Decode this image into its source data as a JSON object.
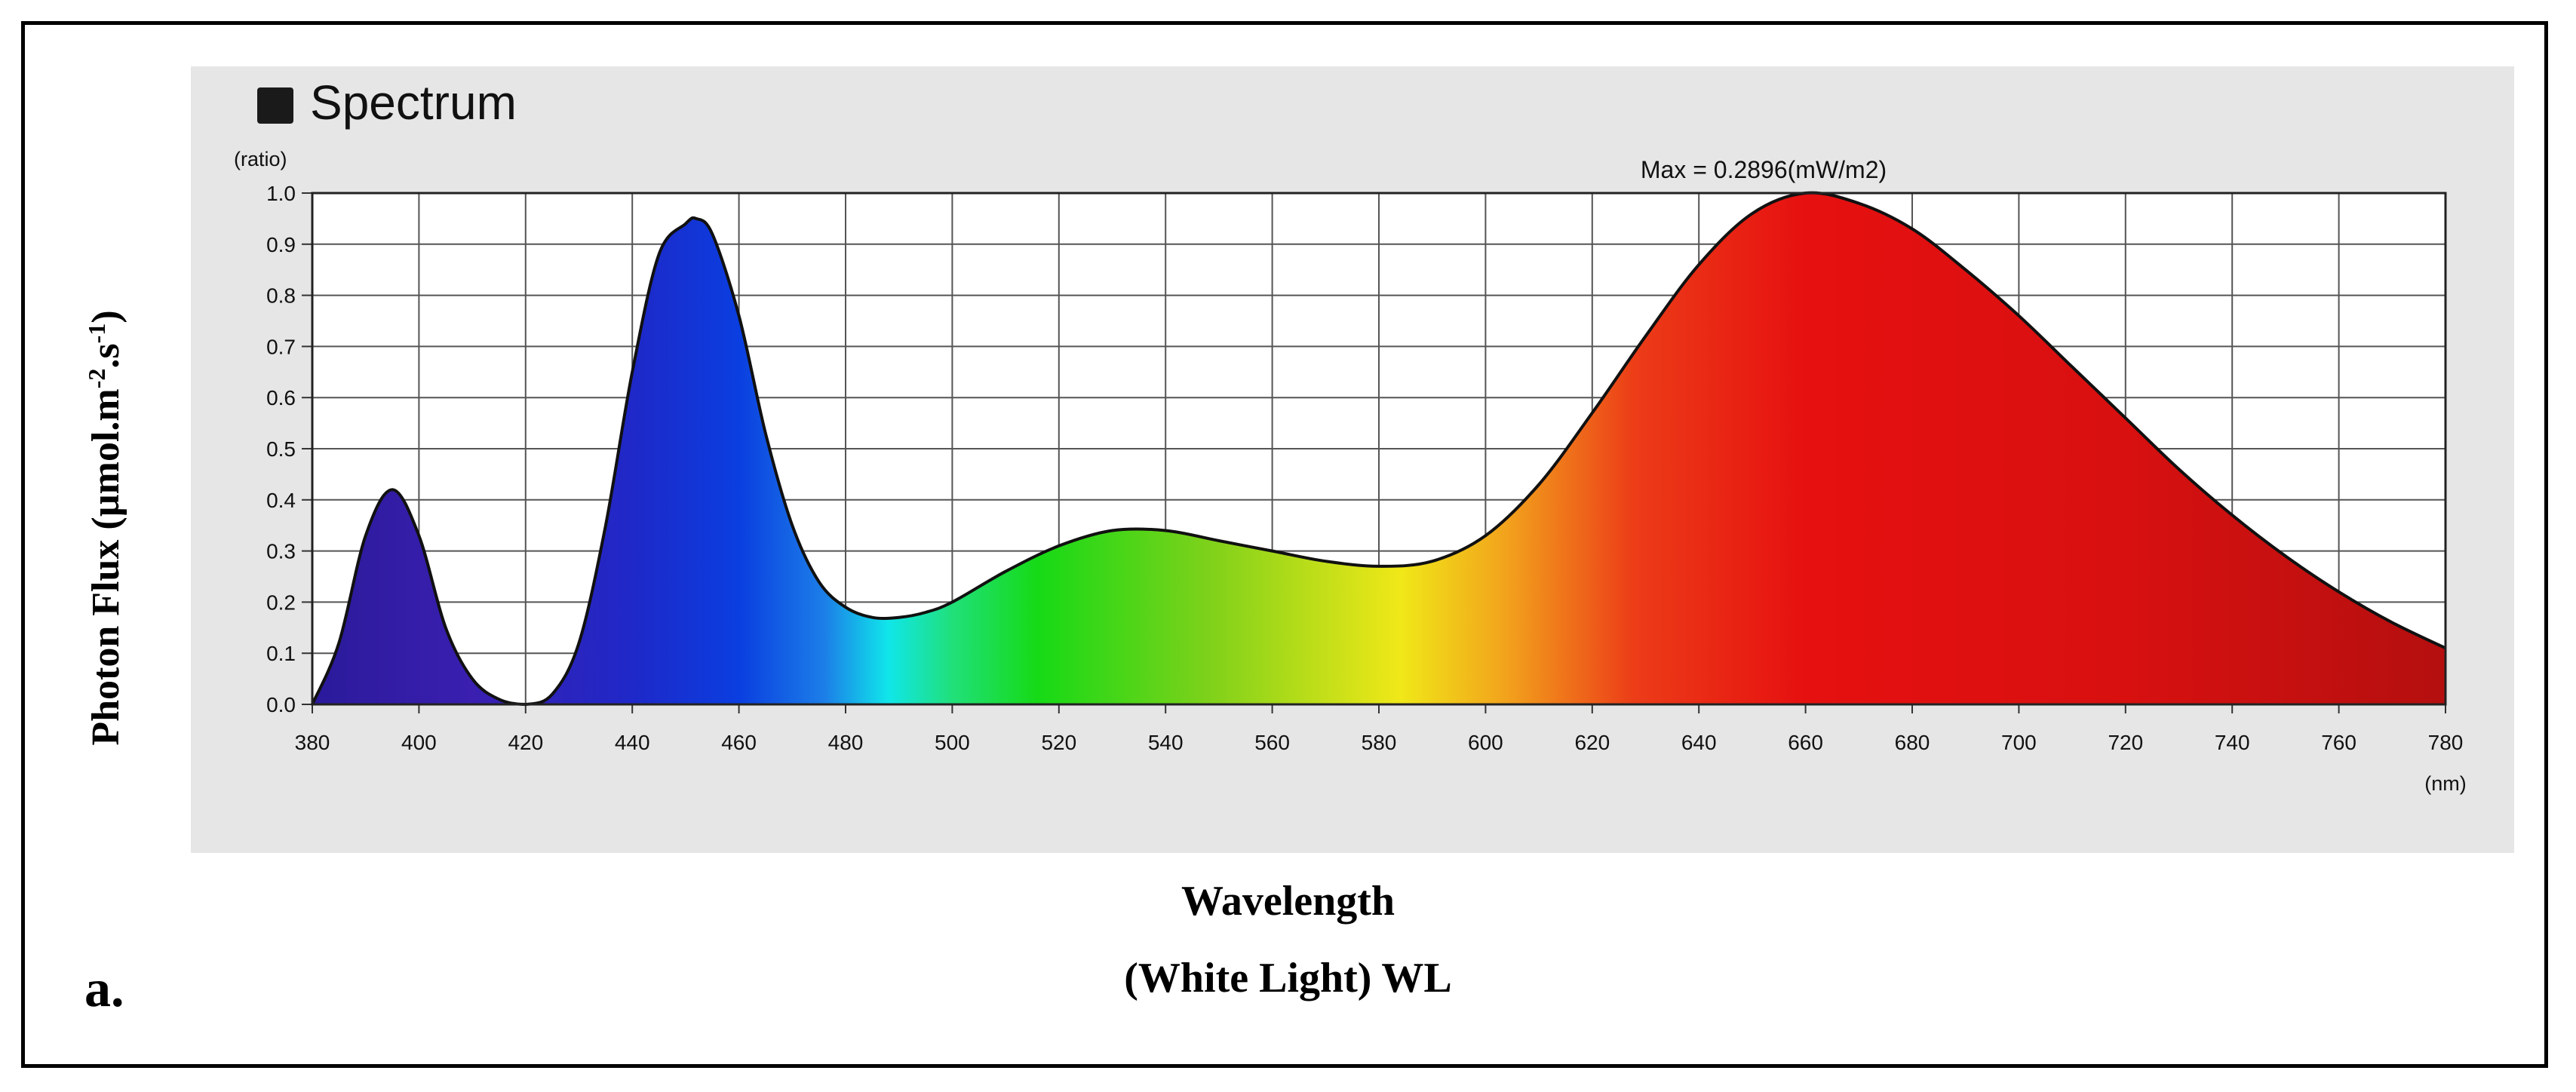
{
  "figure": {
    "panel_label": "a.",
    "y_title": {
      "main": "Photon Flux (µmol.m",
      "sup1": "-2",
      "mid": ".s",
      "sup2": "-1",
      "end": ")"
    },
    "x_title": "Wavelength",
    "subtitle": "(White Light) WL"
  },
  "chart_data": {
    "type": "area",
    "legend": {
      "label": "Spectrum",
      "swatch_color": "#1a1a1a",
      "placement": "top-left"
    },
    "annotation": "Max = 0.2896(mW/m2)",
    "y_unit": "(ratio)",
    "x_unit": "(nm)",
    "xlim": [
      380,
      780
    ],
    "ylim": [
      0,
      1.0
    ],
    "grid": true,
    "x_ticks": [
      380,
      400,
      420,
      440,
      460,
      480,
      500,
      520,
      540,
      560,
      580,
      600,
      620,
      640,
      660,
      680,
      700,
      720,
      740,
      760,
      780
    ],
    "y_ticks": [
      "0.0",
      "0.1",
      "0.2",
      "0.3",
      "0.4",
      "0.5",
      "0.6",
      "0.7",
      "0.8",
      "0.9",
      "1.0"
    ],
    "series": [
      {
        "x": [
          380,
          385,
          390,
          395,
          400,
          405,
          410,
          415,
          420,
          425,
          430,
          435,
          440,
          445,
          450,
          452,
          455,
          460,
          465,
          470,
          475,
          480,
          485,
          490,
          495,
          500,
          510,
          520,
          530,
          540,
          550,
          560,
          570,
          580,
          590,
          600,
          610,
          620,
          630,
          640,
          650,
          660,
          670,
          680,
          690,
          700,
          710,
          720,
          730,
          740,
          750,
          760,
          770,
          780
        ],
        "y": [
          0.0,
          0.12,
          0.33,
          0.42,
          0.33,
          0.15,
          0.05,
          0.01,
          0.0,
          0.02,
          0.12,
          0.35,
          0.65,
          0.88,
          0.94,
          0.95,
          0.92,
          0.76,
          0.53,
          0.35,
          0.24,
          0.19,
          0.17,
          0.17,
          0.18,
          0.2,
          0.26,
          0.31,
          0.34,
          0.34,
          0.32,
          0.3,
          0.28,
          0.27,
          0.28,
          0.33,
          0.43,
          0.57,
          0.72,
          0.86,
          0.96,
          1.0,
          0.98,
          0.93,
          0.85,
          0.76,
          0.66,
          0.56,
          0.46,
          0.37,
          0.29,
          0.22,
          0.16,
          0.11
        ]
      }
    ]
  }
}
